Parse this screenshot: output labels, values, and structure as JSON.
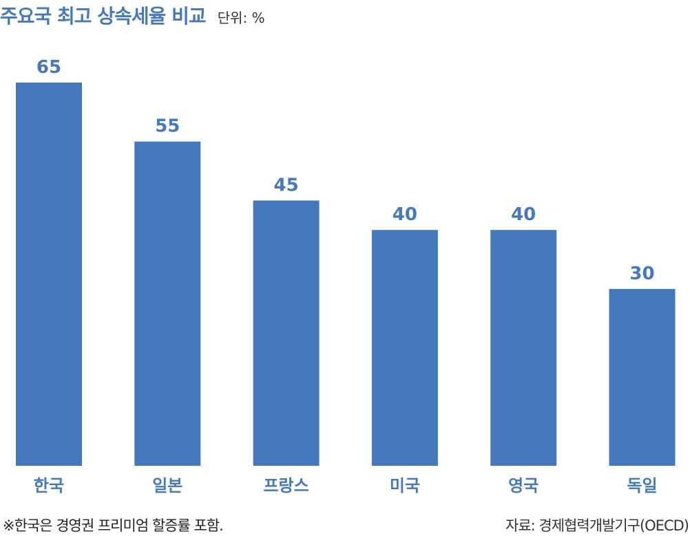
{
  "chart_data": {
    "type": "bar",
    "title": "주요국 최고 상속세율 비교",
    "unit_label": "단위: %",
    "categories": [
      "한국",
      "일본",
      "프랑스",
      "미국",
      "영국",
      "독일"
    ],
    "values": [
      65,
      55,
      45,
      40,
      40,
      30
    ],
    "data_labels": [
      "65",
      "55",
      "45",
      "40",
      "40",
      "30"
    ],
    "ylim": [
      0,
      67.5
    ],
    "grid": false,
    "bar_color": "#4479bd",
    "label_color": "#4479bd"
  },
  "footnote": "※한국은 경영권 프리미엄 할증률 포함.",
  "source": "자료: 경제협력개발기구(OECD)"
}
